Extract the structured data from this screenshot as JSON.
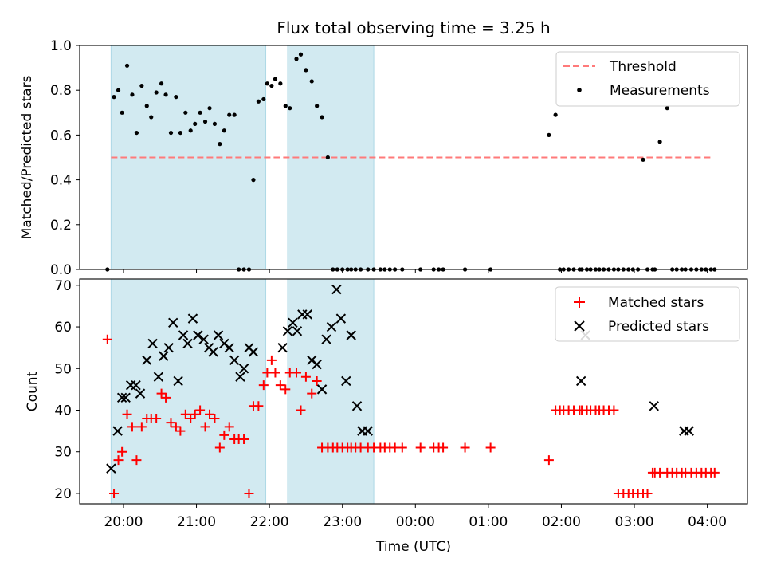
{
  "figure_title": "Flux total observing time = 3.25 h",
  "x_label": "Time (UTC)",
  "x_ticks": [
    {
      "value": 20,
      "label": "20:00"
    },
    {
      "value": 21,
      "label": "21:00"
    },
    {
      "value": 22,
      "label": "22:00"
    },
    {
      "value": 23,
      "label": "23:00"
    },
    {
      "value": 24,
      "label": "00:00"
    },
    {
      "value": 25,
      "label": "01:00"
    },
    {
      "value": 26,
      "label": "02:00"
    },
    {
      "value": 27,
      "label": "03:00"
    },
    {
      "value": 28,
      "label": "04:00"
    }
  ],
  "colors": {
    "threshold": "#ff7a7a",
    "measurements": "#000000",
    "matched": "#ff0000",
    "predicted": "#000000",
    "shade": "#add8e6"
  },
  "chart_data": [
    {
      "type": "scatter",
      "ylabel": "Matched/Predicted stars",
      "ylim": [
        0,
        1.0
      ],
      "xlim": [
        19.4,
        28.55
      ],
      "y_ticks": [
        "0.0",
        "0.2",
        "0.4",
        "0.6",
        "0.8",
        "1.0"
      ],
      "shaded_intervals": [
        [
          19.83,
          21.95
        ],
        [
          22.25,
          23.43
        ]
      ],
      "grid": false,
      "legend_position": "top-right",
      "threshold": {
        "name": "Threshold",
        "value": 0.5,
        "x_range": [
          19.83,
          28.08
        ]
      },
      "series": [
        {
          "name": "Measurements",
          "x": [
            19.78,
            19.87,
            19.93,
            19.98,
            20.05,
            20.12,
            20.18,
            20.25,
            20.32,
            20.38,
            20.45,
            20.52,
            20.58,
            20.65,
            20.72,
            20.78,
            20.85,
            20.92,
            20.98,
            21.05,
            21.12,
            21.18,
            21.25,
            21.32,
            21.38,
            21.45,
            21.52,
            21.58,
            21.65,
            21.72,
            21.78,
            21.85,
            21.92,
            21.97,
            22.03,
            22.08,
            22.15,
            22.22,
            22.28,
            22.37,
            22.43,
            22.5,
            22.58,
            22.65,
            22.72,
            22.8,
            22.87,
            22.93,
            23.0,
            23.07,
            23.12,
            23.18,
            23.25,
            23.35,
            23.43,
            23.52,
            23.58,
            23.65,
            23.72,
            23.82,
            24.07,
            24.25,
            24.32,
            24.38,
            24.68,
            25.03,
            25.83,
            25.92,
            25.98,
            26.03,
            26.1,
            26.17,
            26.25,
            26.28,
            26.35,
            26.4,
            26.47,
            26.52,
            26.58,
            26.65,
            26.72,
            26.78,
            26.85,
            26.92,
            26.98,
            27.05,
            27.12,
            27.18,
            27.25,
            27.28,
            27.35,
            27.45,
            27.52,
            27.58,
            27.65,
            27.7,
            27.78,
            27.85,
            27.92,
            27.98,
            28.05,
            28.1
          ],
          "y": [
            0.0,
            0.77,
            0.8,
            0.7,
            0.91,
            0.78,
            0.61,
            0.82,
            0.73,
            0.68,
            0.79,
            0.83,
            0.78,
            0.61,
            0.77,
            0.61,
            0.7,
            0.62,
            0.65,
            0.7,
            0.66,
            0.72,
            0.65,
            0.56,
            0.62,
            0.69,
            0.69,
            0.0,
            0.0,
            0.0,
            0.4,
            0.75,
            0.76,
            0.83,
            0.82,
            0.85,
            0.83,
            0.73,
            0.72,
            0.94,
            0.96,
            0.89,
            0.84,
            0.73,
            0.68,
            0.5,
            0.0,
            0.0,
            0.0,
            0.0,
            0.0,
            0.0,
            0.0,
            0.0,
            0.0,
            0.0,
            0.0,
            0.0,
            0.0,
            0.0,
            0.0,
            0.0,
            0.0,
            0.0,
            0.0,
            0.0,
            0.6,
            0.69,
            0.0,
            0.0,
            0.0,
            0.0,
            0.0,
            0.0,
            0.0,
            0.0,
            0.0,
            0.0,
            0.0,
            0.0,
            0.0,
            0.0,
            0.0,
            0.0,
            0.0,
            0.0,
            0.49,
            0.0,
            0.0,
            0.0,
            0.57,
            0.72,
            0.0,
            0.0,
            0.0,
            0.0,
            0.0,
            0.0,
            0.0,
            0.0,
            0.0,
            0.0
          ]
        }
      ]
    },
    {
      "type": "scatter",
      "ylabel": "Count",
      "ylim": [
        17.5,
        71.5
      ],
      "xlim": [
        19.4,
        28.55
      ],
      "y_ticks": [
        "20",
        "30",
        "40",
        "50",
        "60",
        "70"
      ],
      "shaded_intervals": [
        [
          19.83,
          21.95
        ],
        [
          22.25,
          23.43
        ]
      ],
      "grid": false,
      "legend_position": "top-right",
      "series": [
        {
          "name": "Matched stars",
          "marker": "plus",
          "x": [
            19.78,
            19.87,
            19.93,
            19.98,
            20.05,
            20.12,
            20.18,
            20.25,
            20.32,
            20.38,
            20.45,
            20.52,
            20.58,
            20.65,
            20.72,
            20.78,
            20.85,
            20.92,
            20.98,
            21.05,
            21.12,
            21.18,
            21.25,
            21.32,
            21.38,
            21.45,
            21.52,
            21.58,
            21.65,
            21.72,
            21.78,
            21.85,
            21.92,
            21.97,
            22.03,
            22.08,
            22.15,
            22.22,
            22.28,
            22.37,
            22.43,
            22.5,
            22.58,
            22.65,
            22.72,
            22.8,
            22.87,
            22.93,
            23.0,
            23.07,
            23.12,
            23.18,
            23.25,
            23.35,
            23.43,
            23.52,
            23.58,
            23.65,
            23.72,
            23.82,
            24.07,
            24.25,
            24.32,
            24.38,
            24.68,
            25.03,
            25.83,
            25.92,
            25.98,
            26.03,
            26.1,
            26.17,
            26.25,
            26.28,
            26.35,
            26.4,
            26.47,
            26.52,
            26.58,
            26.65,
            26.72,
            26.78,
            26.85,
            26.92,
            26.98,
            27.05,
            27.12,
            27.18,
            27.25,
            27.28,
            27.35,
            27.45,
            27.52,
            27.58,
            27.65,
            27.7,
            27.78,
            27.85,
            27.92,
            27.98,
            28.05,
            28.1
          ],
          "y": [
            57,
            20,
            28,
            30,
            39,
            36,
            28,
            36,
            38,
            38,
            38,
            44,
            43,
            37,
            36,
            35,
            39,
            38,
            39,
            40,
            36,
            39,
            38,
            31,
            34,
            36,
            33,
            33,
            33,
            20,
            41,
            41,
            46,
            49,
            52,
            49,
            46,
            45,
            49,
            49,
            40,
            48,
            44,
            47,
            31,
            31,
            31,
            31,
            31,
            31,
            31,
            31,
            31,
            31,
            31,
            31,
            31,
            31,
            31,
            31,
            31,
            31,
            31,
            31,
            31,
            31,
            28,
            40,
            40,
            40,
            40,
            40,
            40,
            40,
            40,
            40,
            40,
            40,
            40,
            40,
            40,
            20,
            20,
            20,
            20,
            20,
            20,
            20,
            25,
            25,
            25,
            25,
            25,
            25,
            25,
            25,
            25,
            25,
            25,
            25,
            25,
            25
          ]
        },
        {
          "name": "Predicted stars",
          "marker": "x",
          "x": [
            19.83,
            19.92,
            19.98,
            20.03,
            20.1,
            20.17,
            20.23,
            20.32,
            20.4,
            20.48,
            20.55,
            20.62,
            20.68,
            20.75,
            20.82,
            20.88,
            20.95,
            21.02,
            21.1,
            21.17,
            21.23,
            21.3,
            21.38,
            21.45,
            21.52,
            21.6,
            21.65,
            21.72,
            21.78,
            22.18,
            22.25,
            22.32,
            22.38,
            22.45,
            22.52,
            22.58,
            22.65,
            22.72,
            22.78,
            22.85,
            22.92,
            22.98,
            23.05,
            23.12,
            23.2,
            23.27,
            23.35,
            26.27,
            26.33,
            27.27,
            27.68,
            27.75
          ],
          "y": [
            26,
            35,
            43,
            43,
            46,
            46,
            44,
            52,
            56,
            48,
            53,
            55,
            61,
            47,
            58,
            56,
            62,
            58,
            57,
            55,
            54,
            58,
            56,
            55,
            52,
            48,
            50,
            55,
            54,
            55,
            59,
            61,
            59,
            63,
            63,
            52,
            51,
            45,
            57,
            60,
            69,
            62,
            47,
            58,
            41,
            35,
            35,
            47,
            58,
            41,
            35,
            35
          ]
        }
      ]
    }
  ]
}
